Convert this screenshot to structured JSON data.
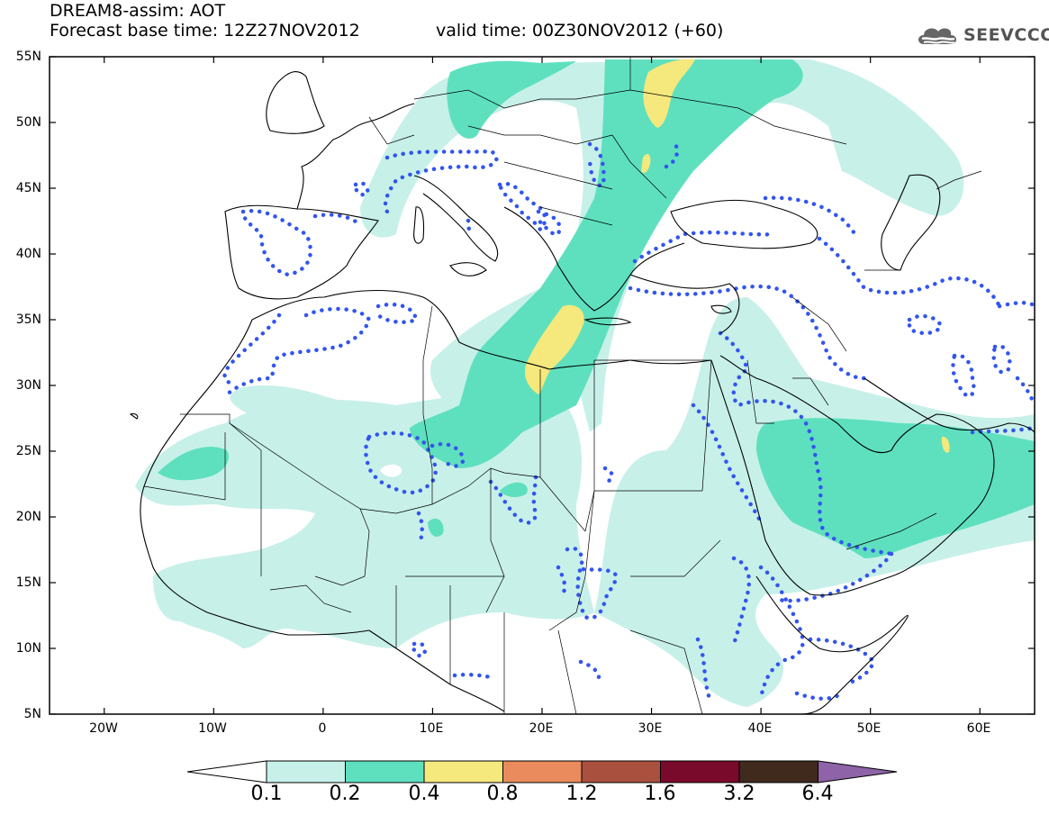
{
  "header": {
    "model_title": "DREAM8-assim: AOT",
    "forecast_base": "Forecast base time: 12Z27NOV2012",
    "valid_time": "valid time: 00Z30NOV2012 (+60)"
  },
  "logo": {
    "text": "SEEVCCC",
    "icon": "cloud-icon"
  },
  "map": {
    "lat_labels": [
      "55N",
      "50N",
      "45N",
      "40N",
      "35N",
      "30N",
      "25N",
      "20N",
      "15N",
      "10N",
      "5N"
    ],
    "lon_labels": [
      "20W",
      "10W",
      "0",
      "10E",
      "20E",
      "30E",
      "40E",
      "50E",
      "60E"
    ],
    "lat_range": [
      5,
      55
    ],
    "lon_range": [
      -25,
      65
    ],
    "contour_color": "#3355ee"
  },
  "colorbar": {
    "labels": [
      "0.1",
      "0.2",
      "0.4",
      "0.8",
      "1.2",
      "1.6",
      "3.2",
      "6.4"
    ],
    "colors": [
      "#ffffff",
      "#c7f0e9",
      "#5ee0be",
      "#f5e87d",
      "#e98b5c",
      "#a9503e",
      "#7a0a2b",
      "#3f2a1d",
      "#8f63a8"
    ]
  }
}
